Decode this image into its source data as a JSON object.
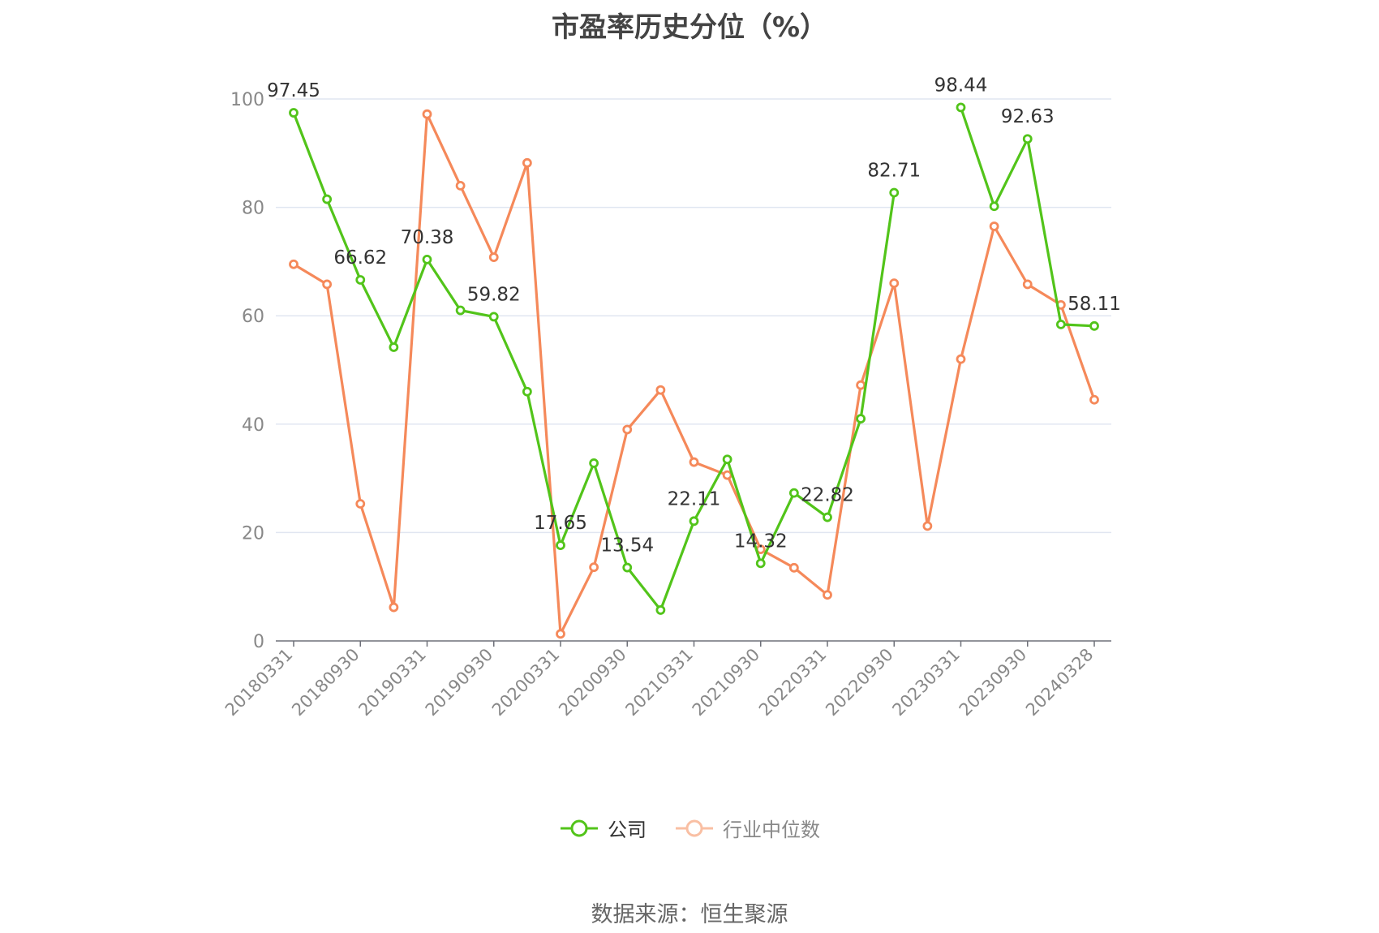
{
  "title": "市盈率历史分位（%）",
  "source": "数据来源：恒生聚源",
  "legend": [
    {
      "name": "公司",
      "color": "#52c41a"
    },
    {
      "name": "行业中位数",
      "color": "#f5895a"
    }
  ],
  "chart_data": {
    "type": "line",
    "ylim": [
      0,
      100
    ],
    "yticks": [
      "0",
      "20",
      "40",
      "60",
      "80",
      "100"
    ],
    "x": [
      "20180331",
      "20180630",
      "20180930",
      "20181231",
      "20190331",
      "20190630",
      "20190930",
      "20191231",
      "20200331",
      "20200630",
      "20200930",
      "20201231",
      "20210331",
      "20210630",
      "20210930",
      "20211231",
      "20220331",
      "20220630",
      "20220930",
      "20221231",
      "20230331",
      "20230630",
      "20230930",
      "20231231",
      "20240328"
    ],
    "x_tick_labels": [
      "20180331",
      "20180930",
      "20190331",
      "20190930",
      "20200331",
      "20200930",
      "20210331",
      "20210930",
      "20220331",
      "20220930",
      "20230331",
      "20230930",
      "20240328"
    ],
    "grid": true,
    "legend_position": "bottom",
    "series": [
      {
        "name": "公司",
        "color": "#52c41a",
        "values": [
          97.45,
          81.5,
          66.62,
          54.2,
          70.38,
          61.0,
          59.82,
          46.0,
          17.65,
          32.8,
          13.54,
          5.7,
          22.11,
          33.5,
          14.32,
          27.3,
          22.82,
          41.0,
          82.71,
          null,
          98.44,
          80.2,
          92.63,
          58.4,
          58.11
        ],
        "labels": [
          "97.45",
          null,
          "66.62",
          null,
          "70.38",
          null,
          "59.82",
          null,
          "17.65",
          null,
          "13.54",
          null,
          "22.11",
          null,
          "14.32",
          null,
          "22.82",
          null,
          "82.71",
          null,
          "98.44",
          null,
          "92.63",
          null,
          "58.11"
        ]
      },
      {
        "name": "行业中位数",
        "color": "#f5895a",
        "values": [
          69.5,
          65.8,
          25.3,
          6.2,
          97.2,
          84.0,
          70.8,
          88.2,
          1.3,
          13.6,
          39.0,
          46.3,
          33.0,
          30.6,
          16.9,
          13.5,
          8.5,
          47.2,
          66.0,
          21.2,
          52.0,
          76.5,
          65.8,
          62.0,
          44.5
        ]
      }
    ]
  }
}
